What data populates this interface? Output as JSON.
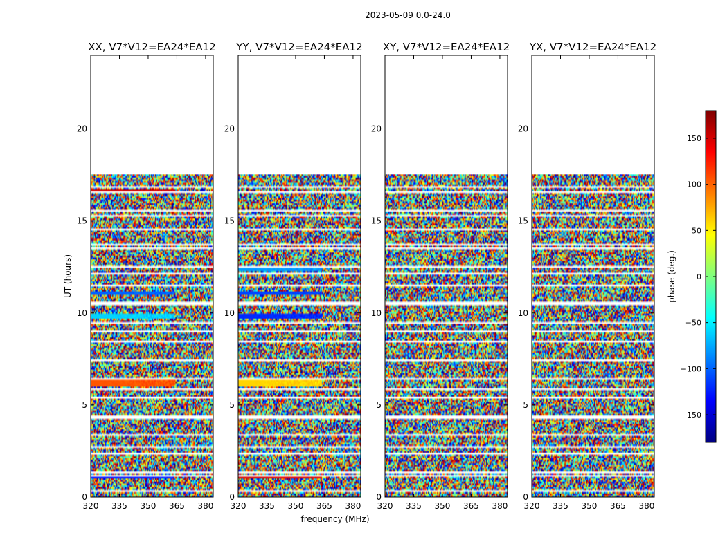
{
  "figure_title": "2023-05-09 0.0-24.0",
  "colorbar": {
    "label": "phase (deg.)",
    "range": [
      -180,
      180
    ],
    "ticks": [
      150,
      100,
      50,
      0,
      -50,
      -100,
      -150
    ],
    "tick_labels": [
      "150",
      "100",
      "50",
      "0",
      "−50",
      "−100",
      "−150"
    ],
    "colormap": [
      "#00007f",
      "#0000ff",
      "#007fff",
      "#00ffff",
      "#7fff7f",
      "#ffff00",
      "#ff7f00",
      "#ff0000",
      "#7f0000"
    ]
  },
  "chart_data": [
    {
      "type": "heatmap",
      "title": "XX, V7*V12=EA24*EA12",
      "xlabel": "",
      "ylabel": "UT (hours)",
      "xlim": [
        320,
        384
      ],
      "ylim": [
        0,
        24
      ],
      "xticks": [
        320,
        335,
        350,
        365,
        380
      ],
      "yticks": [
        0,
        5,
        10,
        15,
        20
      ],
      "value": "phase (deg.)",
      "data_coverage": [
        0,
        17.6
      ],
      "coherent_bands": [
        {
          "t": [
            1.0,
            1.15
          ],
          "phase": -130
        },
        {
          "t": [
            6.0,
            6.4
          ],
          "phase": 105
        },
        {
          "t": [
            9.7,
            9.95
          ],
          "phase": -60
        },
        {
          "t": [
            11.0,
            11.15
          ],
          "phase": -100
        },
        {
          "t": [
            16.6,
            16.75
          ],
          "phase": 150
        }
      ]
    },
    {
      "type": "heatmap",
      "title": "YY, V7*V12=EA24*EA12",
      "xlabel": "frequency (MHz)",
      "ylabel": "",
      "xlim": [
        320,
        384
      ],
      "ylim": [
        0,
        24
      ],
      "xticks": [
        320,
        335,
        350,
        365,
        380
      ],
      "yticks": [
        0,
        5,
        10,
        15,
        20
      ],
      "value": "phase (deg.)",
      "data_coverage": [
        0,
        17.6
      ],
      "coherent_bands": [
        {
          "t": [
            1.0,
            1.15
          ],
          "phase": 150
        },
        {
          "t": [
            6.0,
            6.4
          ],
          "phase": 60
        },
        {
          "t": [
            9.7,
            9.95
          ],
          "phase": -120
        },
        {
          "t": [
            11.0,
            11.15
          ],
          "phase": -110
        },
        {
          "t": [
            12.3,
            12.45
          ],
          "phase": -80
        }
      ]
    },
    {
      "type": "heatmap",
      "title": "XY, V7*V12=EA24*EA12",
      "xlabel": "",
      "ylabel": "",
      "xlim": [
        320,
        384
      ],
      "ylim": [
        0,
        24
      ],
      "xticks": [
        320,
        335,
        350,
        365,
        380
      ],
      "yticks": [
        0,
        5,
        10,
        15,
        20
      ],
      "value": "phase (deg.)",
      "data_coverage": [
        0,
        17.6
      ],
      "coherent_bands": []
    },
    {
      "type": "heatmap",
      "title": "YX, V7*V12=EA24*EA12",
      "xlabel": "",
      "ylabel": "",
      "xlim": [
        320,
        384
      ],
      "ylim": [
        0,
        24
      ],
      "xticks": [
        320,
        335,
        350,
        365,
        380
      ],
      "yticks": [
        0,
        5,
        10,
        15,
        20
      ],
      "value": "phase (deg.)",
      "data_coverage": [
        0,
        17.6
      ],
      "coherent_bands": []
    }
  ]
}
